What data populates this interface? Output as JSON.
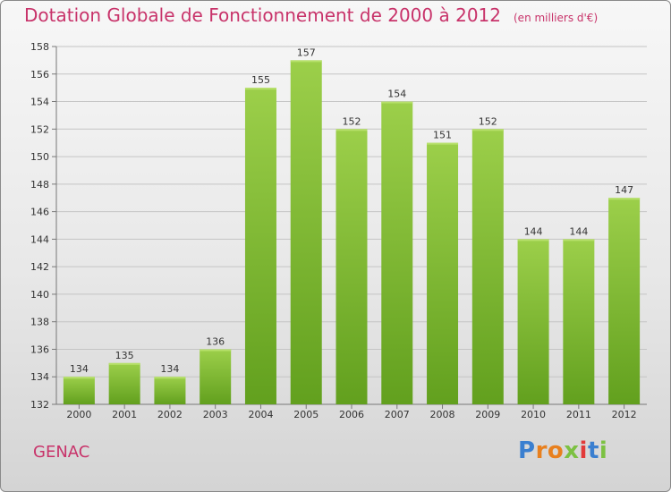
{
  "header": {
    "title": "Dotation Globale de Fonctionnement de 2000 à 2012",
    "unit": "(en milliers d'€)"
  },
  "footer": {
    "commune": "GENAC",
    "logo_letters": [
      "P",
      "r",
      "o",
      "x",
      "i",
      "t",
      "i"
    ],
    "logo_colors": [
      "#3a7fd0",
      "#e8801e",
      "#e8801e",
      "#7cc142",
      "#e23a3a",
      "#3a7fd0",
      "#7cc142"
    ]
  },
  "chart_data": {
    "type": "bar",
    "categories": [
      "2000",
      "2001",
      "2002",
      "2003",
      "2004",
      "2005",
      "2006",
      "2007",
      "2008",
      "2009",
      "2010",
      "2011",
      "2012"
    ],
    "values": [
      134,
      135,
      134,
      136,
      155,
      157,
      152,
      154,
      151,
      152,
      144,
      144,
      147
    ],
    "ylim": [
      132,
      158
    ],
    "yticks": [
      132,
      134,
      136,
      138,
      140,
      142,
      144,
      146,
      148,
      150,
      152,
      154,
      156,
      158
    ],
    "grid": true,
    "bar_color": "#8cc43c"
  }
}
